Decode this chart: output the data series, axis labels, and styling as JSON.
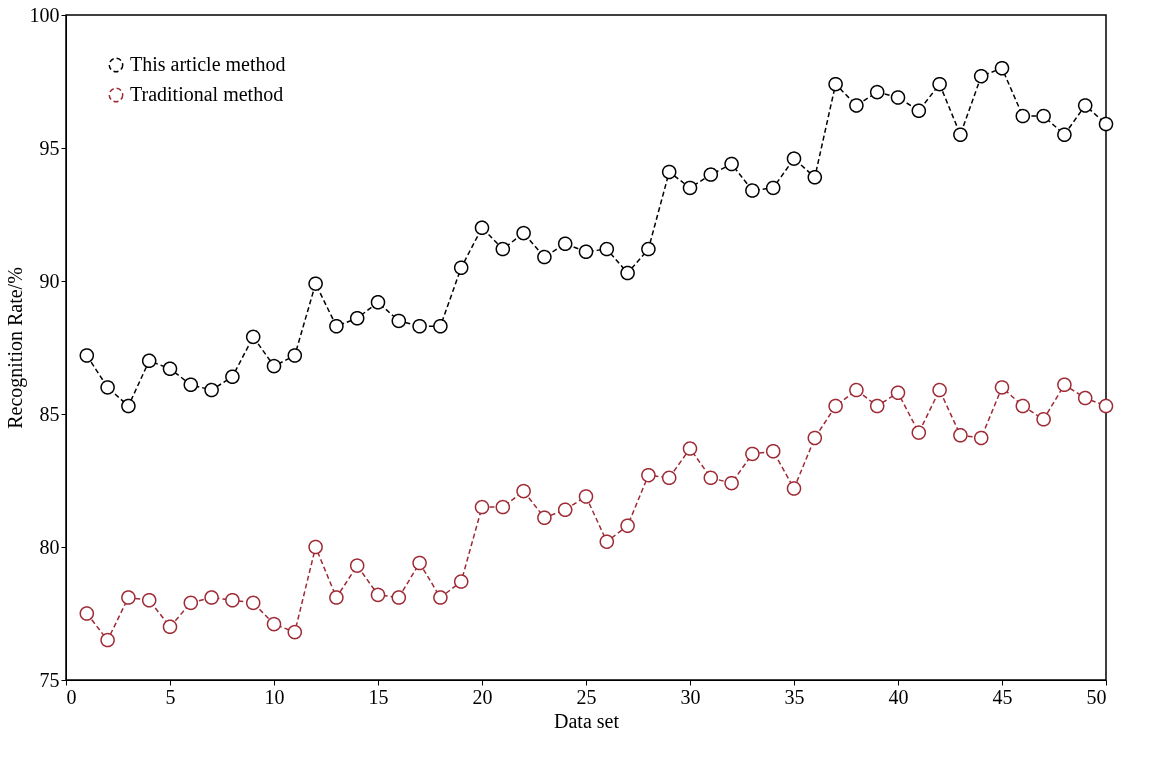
{
  "chart_data": {
    "type": "line",
    "xlabel": "Data set",
    "ylabel": "Recognition Rate/%",
    "x": [
      1,
      2,
      3,
      4,
      5,
      6,
      7,
      8,
      9,
      10,
      11,
      12,
      13,
      14,
      15,
      16,
      17,
      18,
      19,
      20,
      21,
      22,
      23,
      24,
      25,
      26,
      27,
      28,
      29,
      30,
      31,
      32,
      33,
      34,
      35,
      36,
      37,
      38,
      39,
      40,
      41,
      42,
      43,
      44,
      45,
      46,
      47,
      48,
      49,
      50
    ],
    "series": [
      {
        "name": "This article method",
        "color": "#000000",
        "values": [
          87.2,
          86.0,
          85.3,
          87.0,
          86.7,
          86.1,
          85.9,
          86.4,
          87.9,
          86.8,
          87.2,
          89.9,
          88.3,
          88.6,
          89.2,
          88.5,
          88.3,
          88.3,
          90.5,
          92.0,
          91.2,
          91.8,
          90.9,
          91.4,
          91.1,
          91.2,
          90.3,
          91.2,
          94.1,
          93.5,
          94.0,
          94.4,
          93.4,
          93.5,
          94.6,
          93.9,
          97.4,
          96.6,
          97.1,
          96.9,
          96.4,
          97.4,
          95.5,
          97.7,
          98.0,
          96.2,
          96.2,
          95.5,
          96.6,
          95.9
        ]
      },
      {
        "name": "Traditional method",
        "color": "#9e2a35",
        "values": [
          77.5,
          76.5,
          78.1,
          78.0,
          77.0,
          77.9,
          78.1,
          78.0,
          77.9,
          77.1,
          76.8,
          80.0,
          78.1,
          79.3,
          78.2,
          78.1,
          79.4,
          78.1,
          78.7,
          81.5,
          81.5,
          82.1,
          81.1,
          81.4,
          81.9,
          80.2,
          80.8,
          82.7,
          82.6,
          83.7,
          82.6,
          82.4,
          83.5,
          83.6,
          82.2,
          84.1,
          85.3,
          85.9,
          85.3,
          85.8,
          84.3,
          85.9,
          84.2,
          84.1,
          86.0,
          85.3,
          84.8,
          86.1,
          85.6,
          85.3
        ]
      }
    ],
    "xlim": [
      0,
      50
    ],
    "xticks": [
      0,
      5,
      10,
      15,
      20,
      25,
      30,
      35,
      40,
      45,
      50
    ],
    "ylim": [
      75,
      100
    ],
    "yticks": [
      75,
      80,
      85,
      90,
      95,
      100
    ],
    "grid": false,
    "legend": "top left",
    "marker": "circle",
    "line_style": "dashed"
  }
}
